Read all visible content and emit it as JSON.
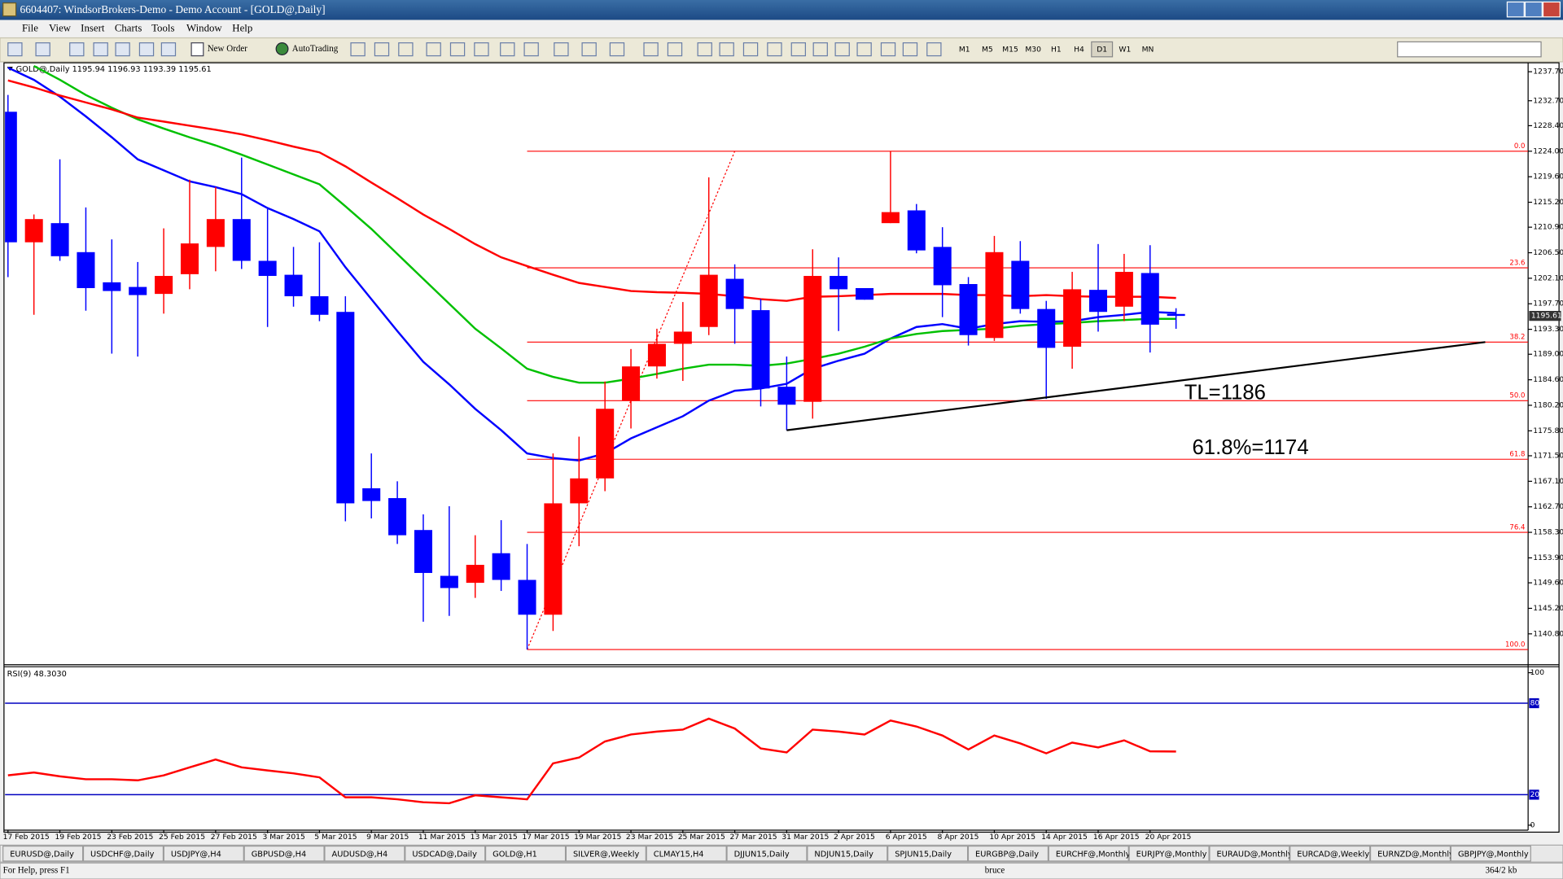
{
  "window": {
    "title": "6604407: WindsorBrokers-Demo - Demo Account - [GOLD@,Daily]",
    "menu": [
      "File",
      "View",
      "Insert",
      "Charts",
      "Tools",
      "Window",
      "Help"
    ],
    "toolbar": {
      "new_order": "New Order",
      "autotrading": "AutoTrading",
      "timeframes": [
        "M1",
        "M5",
        "M15",
        "M30",
        "H1",
        "H4",
        "D1",
        "W1",
        "MN"
      ]
    },
    "tabs": [
      "EURUSD@,Daily",
      "USDCHF@,Daily",
      "USDJPY@,H4",
      "GBPUSD@,H4",
      "AUDUSD@,H4",
      "USDCAD@,Daily",
      "GOLD@,H1",
      "SILVER@,Weekly",
      "CLMAY15,H4",
      "DJJUN15,Daily",
      "NDJUN15,Daily",
      "SPJUN15,Daily",
      "EURGBP@,Daily",
      "EURCHF@,Monthly",
      "EURJPY@,Monthly",
      "EURAUD@,Monthly",
      "EURCAD@,Weekly",
      "EURNZD@,Monthly",
      "GBPJPY@,Monthly"
    ],
    "status": {
      "help": "For Help, press F1",
      "profile": "bruce",
      "traffic": "364/2 kb"
    }
  },
  "chart_data": [
    {
      "type": "candlestick",
      "title": "GOLD@,Daily 1195.94 1196.93 1193.39 1195.61",
      "categories": [
        "17 Feb 2015",
        null,
        "19 Feb 2015",
        null,
        "23 Feb 2015",
        null,
        "25 Feb 2015",
        null,
        "27 Feb 2015",
        null,
        "3 Mar 2015",
        null,
        "5 Mar 2015",
        null,
        "9 Mar 2015",
        null,
        "11 Mar 2015",
        null,
        "13 Mar 2015",
        null,
        "17 Mar 2015",
        null,
        "19 Mar 2015",
        null,
        "23 Mar 2015",
        null,
        "25 Mar 2015",
        null,
        "27 Mar 2015",
        null,
        "31 Mar 2015",
        null,
        "2 Apr 2015",
        null,
        "6 Apr 2015",
        null,
        "8 Apr 2015",
        null,
        "10 Apr 2015",
        null,
        "14 Apr 2015",
        null,
        "16 Apr 2015",
        null,
        "20 Apr 2015",
        null
      ],
      "open": [
        1230.8,
        1208.3,
        1211.6,
        1206.6,
        1201.4,
        1200.6,
        1199.4,
        1202.8,
        1207.5,
        1212.3,
        1205.1,
        1202.7,
        1199.0,
        1196.3,
        1165.9,
        1164.2,
        1158.7,
        1150.8,
        1149.6,
        1154.7,
        1150.1,
        1144.1,
        1163.3,
        1167.6,
        1181.0,
        1186.9,
        1190.8,
        1193.7,
        1202.0,
        1196.6,
        1183.4,
        1180.8,
        1202.5,
        1200.4,
        1211.6,
        1213.8,
        1207.5,
        1201.1,
        1191.8,
        1205.1,
        1196.8,
        1190.3,
        1200.1,
        1197.2,
        1203.0,
        1195.94
      ],
      "high": [
        1233.7,
        1213.1,
        1222.6,
        1214.3,
        1208.8,
        1204.9,
        1210.7,
        1219.1,
        1217.8,
        1222.9,
        1214.0,
        1207.5,
        1208.3,
        1199.0,
        1171.9,
        1167.1,
        1161.4,
        1162.8,
        1157.8,
        1160.4,
        1156.3,
        1171.9,
        1174.8,
        1184.3,
        1189.9,
        1193.4,
        1198.0,
        1219.5,
        1204.5,
        1198.5,
        1188.6,
        1207.1,
        1205.7,
        1200.4,
        1224.0,
        1214.9,
        1210.9,
        1202.3,
        1209.4,
        1208.5,
        1198.2,
        1203.2,
        1208.0,
        1206.3,
        1207.8,
        1196.93
      ],
      "low": [
        1202.3,
        1195.8,
        1205.1,
        1196.5,
        1189.1,
        1188.6,
        1196.0,
        1200.2,
        1203.3,
        1203.7,
        1193.7,
        1197.2,
        1194.7,
        1160.2,
        1160.7,
        1156.3,
        1142.9,
        1143.9,
        1147.0,
        1148.2,
        1138.1,
        1141.3,
        1155.9,
        1165.4,
        1176.2,
        1184.8,
        1184.4,
        1192.3,
        1190.8,
        1180.0,
        1175.9,
        1177.9,
        1193.0,
        1198.4,
        1211.6,
        1206.4,
        1195.4,
        1190.5,
        1191.3,
        1196.0,
        1181.3,
        1186.5,
        1192.9,
        1194.7,
        1189.3,
        1193.39
      ],
      "close": [
        1208.3,
        1212.3,
        1205.9,
        1200.4,
        1199.9,
        1199.2,
        1202.5,
        1208.1,
        1212.3,
        1205.1,
        1202.5,
        1199.0,
        1195.8,
        1163.3,
        1163.7,
        1157.8,
        1151.3,
        1148.7,
        1152.7,
        1150.1,
        1144.1,
        1163.3,
        1167.6,
        1179.6,
        1186.9,
        1190.8,
        1192.9,
        1202.7,
        1196.8,
        1183.1,
        1180.3,
        1202.5,
        1200.2,
        1198.4,
        1213.5,
        1206.9,
        1200.9,
        1192.3,
        1206.6,
        1196.8,
        1190.1,
        1200.2,
        1196.3,
        1203.2,
        1194.1,
        1195.61
      ],
      "up_color": "#ff0000",
      "down_color": "#0000ff",
      "series": [
        {
          "color": "#0000ff",
          "values": [
            1238.4,
            1236.3,
            1233.4,
            1230.0,
            1226.4,
            1222.6,
            1220.7,
            1218.8,
            1217.8,
            1216.6,
            1214.2,
            1212.3,
            1210.2,
            1204.0,
            1198.5,
            1193.0,
            1187.7,
            1183.8,
            1179.6,
            1175.9,
            1171.9,
            1171.1,
            1170.7,
            1171.9,
            1174.5,
            1176.4,
            1178.3,
            1181.0,
            1182.7,
            1183.1,
            1183.9,
            1186.5,
            1187.9,
            1189.1,
            1191.7,
            1193.7,
            1194.2,
            1193.4,
            1194.2,
            1194.7,
            1194.6,
            1194.7,
            1195.4,
            1195.8,
            1196.3,
            1196.1
          ]
        },
        {
          "color": "#00c000",
          "values": [
            null,
            1238.7,
            1236.3,
            1233.7,
            1231.5,
            1229.5,
            1227.9,
            1226.4,
            1225.0,
            1223.4,
            1221.7,
            1220.0,
            1218.3,
            1214.5,
            1210.6,
            1206.3,
            1202.0,
            1197.7,
            1193.4,
            1190.0,
            1186.5,
            1185.1,
            1184.1,
            1184.1,
            1184.8,
            1185.6,
            1186.5,
            1187.2,
            1187.2,
            1187.0,
            1187.4,
            1188.2,
            1189.1,
            1190.3,
            1191.7,
            1192.5,
            1193.0,
            1193.2,
            1193.4,
            1193.9,
            1194.2,
            1194.4,
            1194.7,
            1194.9,
            1195.1,
            1195.1
          ]
        },
        {
          "color": "#ff0000",
          "values": [
            1236.2,
            1235.0,
            1233.6,
            1232.4,
            1231.2,
            1229.8,
            1229.1,
            1228.4,
            1227.7,
            1226.9,
            1225.9,
            1224.8,
            1223.8,
            1221.4,
            1218.6,
            1215.9,
            1213.1,
            1210.6,
            1208.0,
            1205.7,
            1204.2,
            1202.7,
            1201.3,
            1200.6,
            1199.9,
            1199.7,
            1199.6,
            1199.4,
            1199.0,
            1198.5,
            1198.2,
            1198.9,
            1199.0,
            1199.2,
            1199.4,
            1199.4,
            1199.4,
            1199.2,
            1199.2,
            1199.0,
            1199.2,
            1199.0,
            1198.9,
            1198.9,
            1198.9,
            1198.7
          ]
        }
      ],
      "ylim": [
        1135.65,
        1239.07
      ],
      "yticks": [
        {
          "value": 1237.7,
          "label": "1237.70"
        },
        {
          "value": 1232.7,
          "label": "1232.70"
        },
        {
          "value": 1228.4,
          "label": "1228.40"
        },
        {
          "value": 1224.0,
          "label": "1224.00"
        },
        {
          "value": 1219.6,
          "label": "1219.60"
        },
        {
          "value": 1215.2,
          "label": "1215.20"
        },
        {
          "value": 1210.9,
          "label": "1210.90"
        },
        {
          "value": 1206.5,
          "label": "1206.50"
        },
        {
          "value": 1202.1,
          "label": "1202.10"
        },
        {
          "value": 1197.7,
          "label": "1197.70"
        },
        {
          "value": 1193.3,
          "label": "1193.30"
        },
        {
          "value": 1189.0,
          "label": "1189.00"
        },
        {
          "value": 1184.6,
          "label": "1184.60"
        },
        {
          "value": 1180.2,
          "label": "1180.20"
        },
        {
          "value": 1175.8,
          "label": "1175.80"
        },
        {
          "value": 1171.5,
          "label": "1171.50"
        },
        {
          "value": 1167.1,
          "label": "1167.10"
        },
        {
          "value": 1162.7,
          "label": "1162.70"
        },
        {
          "value": 1158.3,
          "label": "1158.30"
        },
        {
          "value": 1153.9,
          "label": "1153.90"
        },
        {
          "value": 1149.6,
          "label": "1149.60"
        },
        {
          "value": 1145.2,
          "label": "1145.20"
        },
        {
          "value": 1140.8,
          "label": "1140.80"
        }
      ],
      "grid": false,
      "last_price": {
        "value": 1195.61,
        "label": "1195.61"
      },
      "fib_color": "#ff0000",
      "fib_levels": [
        {
          "value": 1224.0,
          "label": "0.0"
        },
        {
          "value": 1203.9,
          "label": "23.6"
        },
        {
          "value": 1191.1,
          "label": "38.2"
        },
        {
          "value": 1181.0,
          "label": "50.0"
        },
        {
          "value": 1170.9,
          "label": "61.8"
        },
        {
          "value": 1158.3,
          "label": "76.4"
        },
        {
          "value": 1138.1,
          "label": "100.0"
        }
      ],
      "trendline": {
        "color": "#000000",
        "values": [
          1175.9,
          1191.1
        ]
      },
      "annotations": [
        "TL=1186",
        "61.8%=1174"
      ]
    },
    {
      "type": "line",
      "title": "RSI(9) 48.3030",
      "series": [
        {
          "color": "#ff0000",
          "values": [
            32.7,
            34.6,
            32.0,
            30.1,
            30.1,
            29.4,
            32.7,
            37.9,
            43.1,
            37.9,
            35.9,
            34.0,
            31.4,
            18.3,
            18.3,
            17.0,
            15.0,
            14.4,
            19.6,
            18.3,
            17.0,
            40.5,
            44.4,
            54.9,
            59.5,
            61.4,
            62.7,
            69.9,
            63.4,
            50.3,
            47.7,
            62.7,
            61.4,
            59.5,
            68.6,
            64.7,
            58.8,
            49.7,
            58.8,
            53.6,
            47.1,
            54.2,
            51.0,
            55.6,
            48.4,
            48.303
          ]
        }
      ],
      "ylim": [
        0,
        100
      ],
      "yticks": [
        0,
        20,
        80,
        100
      ],
      "level_color": "#0000c0"
    }
  ]
}
